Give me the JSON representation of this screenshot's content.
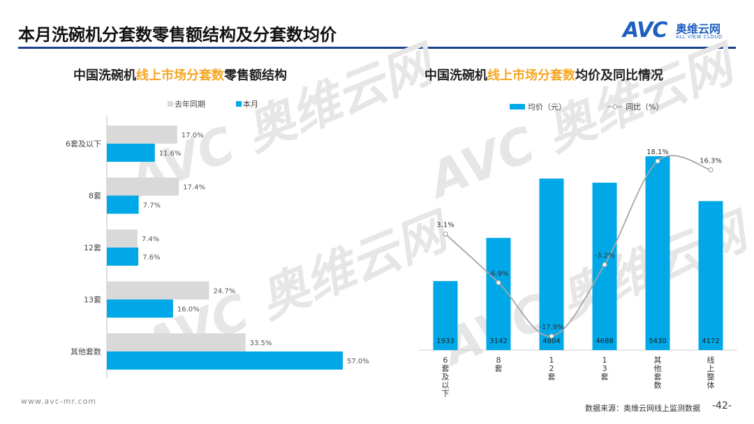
{
  "page": {
    "title": "本月洗碗机分套数零售额结构及分套数均价",
    "logo_mark": "AVC",
    "logo_cn": "奥维云网",
    "logo_en": "ALL VIEW CLOUD",
    "footer_url": "www.avc-mr.com",
    "footer_source": "数据来源：奥维云网线上监测数据",
    "page_number": "-42-",
    "watermark_text": "AVC 奥维云网",
    "accent_color": "#00a8e8",
    "gray_color": "#d9d9d9",
    "highlight_color": "#f5a623"
  },
  "chart_data": [
    {
      "type": "bar",
      "orientation": "horizontal",
      "title_parts": [
        "中国洗碗机",
        "线上市场分套数",
        "零售额结构"
      ],
      "categories": [
        "6套及以下",
        "8套",
        "12套",
        "13套",
        "其他套数"
      ],
      "series": [
        {
          "name": "去年同期",
          "values": [
            17.0,
            17.4,
            7.4,
            24.7,
            33.5
          ],
          "labels": [
            "17.0%",
            "17.4%",
            "7.4%",
            "24.7%",
            "33.5%"
          ],
          "color": "#d9d9d9"
        },
        {
          "name": "本月",
          "values": [
            11.6,
            7.7,
            7.6,
            16.0,
            57.0
          ],
          "labels": [
            "11.6%",
            "7.7%",
            "7.6%",
            "16.0%",
            "57.0%"
          ],
          "color": "#00a8e8"
        }
      ],
      "xlim": [
        0,
        60
      ],
      "legend_position": "top"
    },
    {
      "type": "bar+line",
      "title_parts": [
        "中国洗碗机",
        "线上市场分套数",
        "均价及同比情况"
      ],
      "categories": [
        "6套及以下",
        "8套",
        "12套",
        "13套",
        "其他套数",
        "线上整体"
      ],
      "bar_series": {
        "name": "均价（元）",
        "values": [
          1933,
          3142,
          4804,
          4688,
          5430,
          4172
        ],
        "color": "#00a8e8"
      },
      "line_series": {
        "name": "同比（%）",
        "values": [
          3.1,
          -6.9,
          -17.9,
          -3.2,
          18.1,
          16.3
        ],
        "labels": [
          "3.1%",
          "-6.9%",
          "-17.9%",
          "-3.2%",
          "18.1%",
          "16.3%"
        ],
        "color": "#a6a6a6"
      },
      "ylim": [
        0,
        5800
      ],
      "line_ylim": [
        -22,
        24
      ],
      "legend_position": "top"
    }
  ]
}
